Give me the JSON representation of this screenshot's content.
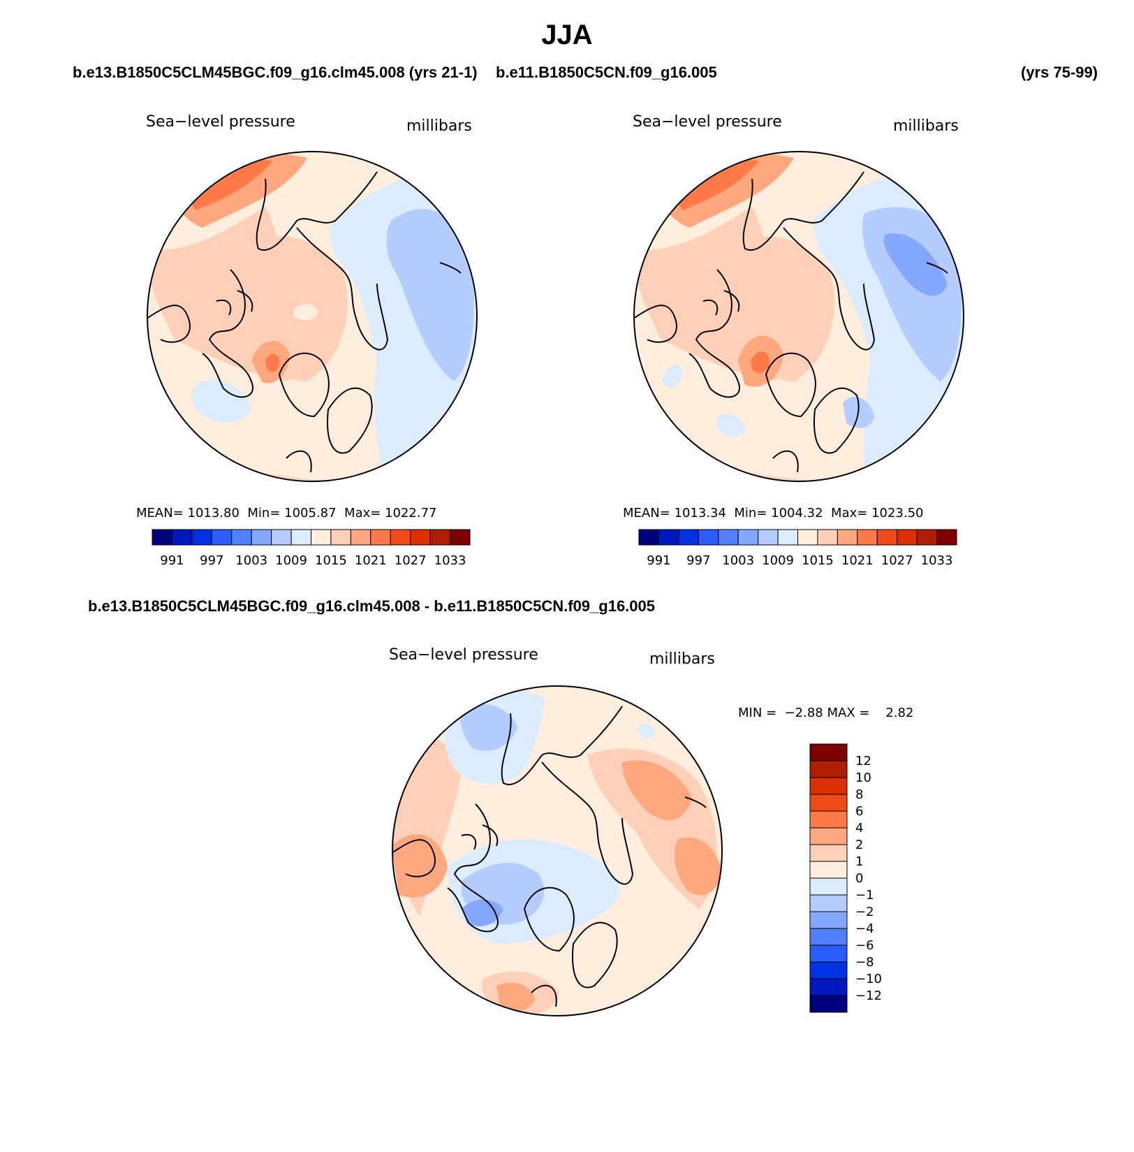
{
  "title": "JJA",
  "case_left": "b.e13.B1850C5CLM45BGC.f09_g16.clm45.008 (yrs 21-1)",
  "case_left_overlap": "b.e11.B1850C5CN.f09_g16.005",
  "case_right_years": "(yrs 75-99)",
  "diff_title": "b.e13.B1850C5CLM45BGC.f09_g16.clm45.008 - b.e11.B1850C5CN.f09_g16.005",
  "colors": {
    "mean_scale": [
      "#00007f",
      "#0019bf",
      "#0033e5",
      "#2a5cff",
      "#5080ff",
      "#84a8ff",
      "#b4ccff",
      "#dcecff",
      "#ffeedd",
      "#ffd0b8",
      "#ffa880",
      "#ff7a48",
      "#f04a18",
      "#dc3000",
      "#b01e00",
      "#7f0000"
    ],
    "diff_scale": [
      "#00007f",
      "#0019bf",
      "#0033e5",
      "#2a5cff",
      "#5080ff",
      "#84a8ff",
      "#b4ccff",
      "#dcecff",
      "#ffeedd",
      "#ffd0b8",
      "#ffa880",
      "#ff7a48",
      "#f04a18",
      "#dc3000",
      "#b01e00",
      "#7f0000"
    ]
  },
  "chart_data": [
    {
      "type": "contour-map",
      "projection": "polar stereographic (North Pole)",
      "left_label": "Sea−level pressure",
      "right_label": "millibars",
      "stats": {
        "mean_label": "MEAN=",
        "mean": "1013.80",
        "min_label": "Min=",
        "min": "1005.87",
        "max_label": "Max=",
        "max": "1022.77"
      },
      "colorbar_ticks": [
        "991",
        "997",
        "1003",
        "1009",
        "1015",
        "1021",
        "1027",
        "1033"
      ],
      "levels": [
        985,
        988,
        991,
        994,
        997,
        1000,
        1003,
        1006,
        1009,
        1012,
        1015,
        1018,
        1021,
        1024,
        1027,
        1030,
        1033
      ]
    },
    {
      "type": "contour-map",
      "projection": "polar stereographic (North Pole)",
      "left_label": "Sea−level pressure",
      "right_label": "millibars",
      "stats": {
        "mean_label": "MEAN=",
        "mean": "1013.34",
        "min_label": "Min=",
        "min": "1004.32",
        "max_label": "Max=",
        "max": "1023.50"
      },
      "colorbar_ticks": [
        "991",
        "997",
        "1003",
        "1009",
        "1015",
        "1021",
        "1027",
        "1033"
      ],
      "levels": [
        985,
        988,
        991,
        994,
        997,
        1000,
        1003,
        1006,
        1009,
        1012,
        1015,
        1018,
        1021,
        1024,
        1027,
        1030,
        1033
      ]
    },
    {
      "type": "contour-map",
      "projection": "polar stereographic (North Pole)",
      "left_label": "Sea−level pressure",
      "right_label": "millibars",
      "stats": {
        "min_label": "MIN =",
        "min": "−2.88",
        "max_label": "MAX =",
        "max": "2.82"
      },
      "colorbar_ticks": [
        "12",
        "10",
        "8",
        "6",
        "4",
        "2",
        "1",
        "0",
        "−1",
        "−2",
        "−4",
        "−6",
        "−8",
        "−10",
        "−12"
      ]
    }
  ]
}
